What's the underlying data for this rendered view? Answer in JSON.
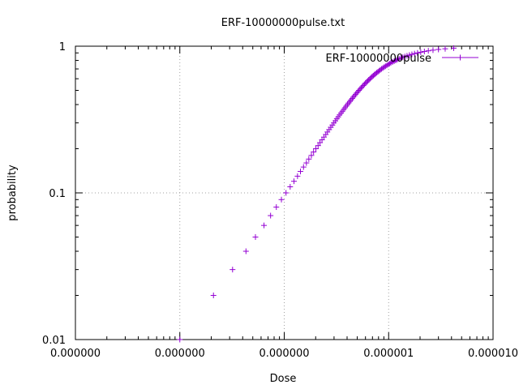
{
  "chart_data": {
    "type": "scatter",
    "title": "ERF-10000000pulse.txt",
    "xlabel": "Dose",
    "ylabel": "probability",
    "x_scale": "log",
    "y_scale": "log",
    "xlim": [
      1e-09,
      1e-05
    ],
    "ylim": [
      0.01,
      1
    ],
    "x_ticks": [
      {
        "value": 1e-09,
        "label": "0.000000"
      },
      {
        "value": 1e-08,
        "label": "0.000000"
      },
      {
        "value": 1e-07,
        "label": "0.000000"
      },
      {
        "value": 1e-06,
        "label": "0.000001"
      },
      {
        "value": 1e-05,
        "label": "0.000010"
      }
    ],
    "y_ticks": [
      {
        "value": 0.01,
        "label": "0.01"
      },
      {
        "value": 0.1,
        "label": "0.1"
      },
      {
        "value": 1,
        "label": "1"
      }
    ],
    "grid": true,
    "legend_position": "top-right",
    "series": [
      {
        "name": "ERF-10000000pulse",
        "color": "#9400d3",
        "marker": "plus",
        "points": [
          [
            1e-08,
            0.01
          ],
          [
            2.1e-08,
            0.02
          ],
          [
            3.2e-08,
            0.03
          ],
          [
            4.3e-08,
            0.04
          ],
          [
            5.3e-08,
            0.05
          ],
          [
            6.4e-08,
            0.06
          ],
          [
            7.4e-08,
            0.07
          ],
          [
            8.4e-08,
            0.08
          ],
          [
            9.4e-08,
            0.09
          ],
          [
            1.04e-07,
            0.1
          ],
          [
            1.14e-07,
            0.11
          ],
          [
            1.24e-07,
            0.12
          ],
          [
            1.34e-07,
            0.13
          ],
          [
            1.43e-07,
            0.14
          ],
          [
            1.53e-07,
            0.15
          ],
          [
            1.63e-07,
            0.16
          ],
          [
            1.72e-07,
            0.17
          ],
          [
            1.82e-07,
            0.18
          ],
          [
            1.91e-07,
            0.19
          ],
          [
            2.01e-07,
            0.2
          ],
          [
            2.11e-07,
            0.21
          ],
          [
            2.2e-07,
            0.22
          ],
          [
            2.3e-07,
            0.23
          ],
          [
            2.4e-07,
            0.24
          ],
          [
            2.5e-07,
            0.25
          ],
          [
            2.59e-07,
            0.26
          ],
          [
            2.69e-07,
            0.27
          ],
          [
            2.79e-07,
            0.28
          ],
          [
            2.89e-07,
            0.29
          ],
          [
            2.99e-07,
            0.3
          ],
          [
            3.09e-07,
            0.31
          ],
          [
            3.19e-07,
            0.32
          ],
          [
            3.29e-07,
            0.33
          ],
          [
            3.39e-07,
            0.34
          ],
          [
            3.5e-07,
            0.35
          ],
          [
            3.6e-07,
            0.36
          ],
          [
            3.71e-07,
            0.37
          ],
          [
            3.81e-07,
            0.38
          ],
          [
            3.92e-07,
            0.39
          ],
          [
            4.03e-07,
            0.4
          ],
          [
            4.14e-07,
            0.41
          ],
          [
            4.25e-07,
            0.42
          ],
          [
            4.36e-07,
            0.43
          ],
          [
            4.48e-07,
            0.44
          ],
          [
            4.59e-07,
            0.45
          ],
          [
            4.71e-07,
            0.46
          ],
          [
            4.83e-07,
            0.47
          ],
          [
            4.95e-07,
            0.48
          ],
          [
            5.07e-07,
            0.49
          ],
          [
            5.2e-07,
            0.5
          ],
          [
            5.33e-07,
            0.51
          ],
          [
            5.46e-07,
            0.52
          ],
          [
            5.59e-07,
            0.53
          ],
          [
            5.73e-07,
            0.54
          ],
          [
            5.87e-07,
            0.55
          ],
          [
            6.01e-07,
            0.56
          ],
          [
            6.16e-07,
            0.57
          ],
          [
            6.31e-07,
            0.58
          ],
          [
            6.46e-07,
            0.59
          ],
          [
            6.62e-07,
            0.6
          ],
          [
            6.79e-07,
            0.61
          ],
          [
            6.96e-07,
            0.62
          ],
          [
            7.13e-07,
            0.63
          ],
          [
            7.31e-07,
            0.64
          ],
          [
            7.5e-07,
            0.65
          ],
          [
            7.7e-07,
            0.66
          ],
          [
            7.9e-07,
            0.67
          ],
          [
            8.11e-07,
            0.68
          ],
          [
            8.33e-07,
            0.69
          ],
          [
            8.56e-07,
            0.7
          ],
          [
            8.8e-07,
            0.71
          ],
          [
            9.06e-07,
            0.72
          ],
          [
            9.32e-07,
            0.73
          ],
          [
            9.6e-07,
            0.74
          ],
          [
            9.9e-07,
            0.75
          ],
          [
            1.02e-06,
            0.76
          ],
          [
            1.05e-06,
            0.77
          ],
          [
            1.09e-06,
            0.78
          ],
          [
            1.13e-06,
            0.79
          ],
          [
            1.17e-06,
            0.8
          ],
          [
            1.21e-06,
            0.81
          ],
          [
            1.26e-06,
            0.82
          ],
          [
            1.31e-06,
            0.83
          ],
          [
            1.37e-06,
            0.84
          ],
          [
            1.43e-06,
            0.85
          ],
          [
            1.5e-06,
            0.86
          ],
          [
            1.58e-06,
            0.87
          ],
          [
            1.67e-06,
            0.88
          ],
          [
            1.77e-06,
            0.89
          ],
          [
            1.89e-06,
            0.9
          ],
          [
            2.03e-06,
            0.91
          ],
          [
            2.2e-06,
            0.92
          ],
          [
            2.4e-06,
            0.93
          ],
          [
            2.66e-06,
            0.94
          ],
          [
            3e-06,
            0.95
          ],
          [
            3.48e-06,
            0.96
          ],
          [
            4.2e-06,
            0.97
          ]
        ]
      }
    ]
  }
}
